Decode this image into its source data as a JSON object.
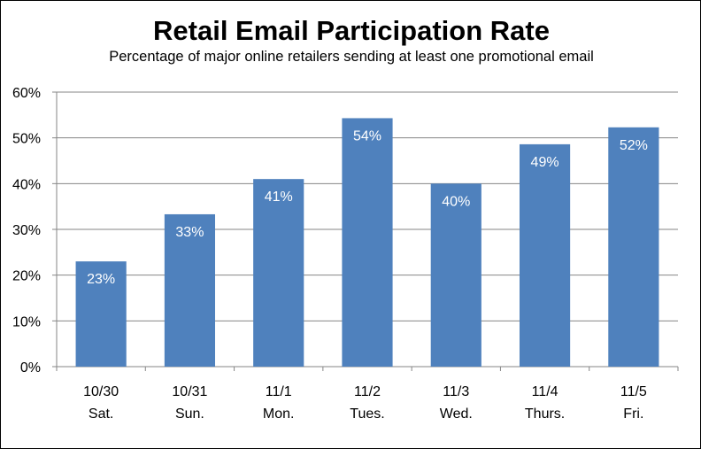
{
  "chart_data": {
    "type": "bar",
    "title": "Retail Email Participation Rate",
    "subtitle": "Percentage of major online retailers sending at least one promotional email",
    "categories": [
      "10/30",
      "10/31",
      "11/1",
      "11/2",
      "11/3",
      "11/4",
      "11/5"
    ],
    "category_sublabels": [
      "Sat.",
      "Sun.",
      "Mon.",
      "Tues.",
      "Wed.",
      "Thurs.",
      "Fri."
    ],
    "values": [
      23,
      33.3,
      41,
      54.3,
      40,
      48.6,
      52.3
    ],
    "data_labels": [
      "23%",
      "33%",
      "41%",
      "54%",
      "40%",
      "49%",
      "52%"
    ],
    "y_ticks": [
      "0%",
      "10%",
      "20%",
      "30%",
      "40%",
      "50%",
      "60%"
    ],
    "ylim": [
      0,
      60
    ],
    "xlabel": "",
    "ylabel": "",
    "grid": true,
    "legend": "none",
    "bar_color": "#4f81bd",
    "grid_color": "#868686"
  }
}
